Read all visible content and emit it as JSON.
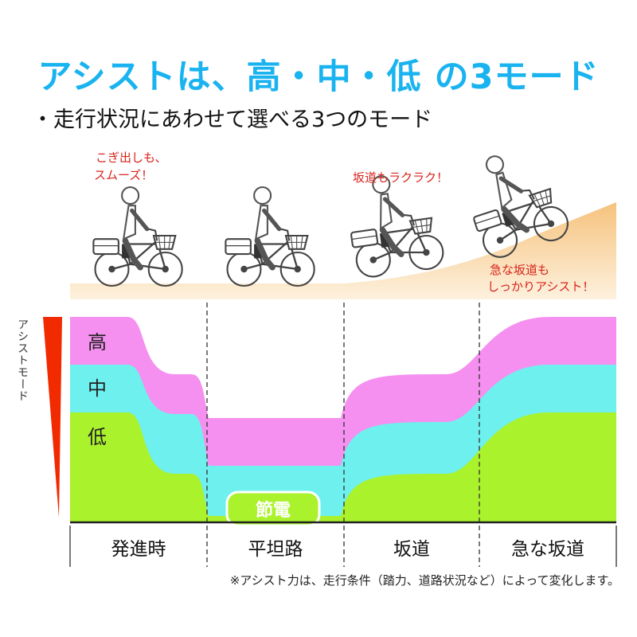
{
  "header": {
    "title": "アシストは、高・中・低 の3モード",
    "subtitle": "・走行状況にあわせて選べる3つのモード"
  },
  "callouts": {
    "start": [
      "こぎ出しも、",
      "スムーズ！"
    ],
    "slope": [
      "坂道もラクラク！"
    ],
    "steep": [
      "急な坂道も",
      "しっかりアシスト！"
    ]
  },
  "axis_label": "アシストモード",
  "modes": {
    "high": "高",
    "mid": "中",
    "low": "低",
    "eco": "節電"
  },
  "sections": [
    "発進時",
    "平坦路",
    "坂道",
    "急な坂道"
  ],
  "footnote": "※アシスト力は、走行条件（踏力、道路状況など）によって変化します。",
  "colors": {
    "title": "#19b3f0",
    "high": "#f590f0",
    "mid": "#6ef0ee",
    "low": "#aaf22c",
    "callout": "#d8241c",
    "road": "#f8cf92",
    "arrow": "#f22a00"
  },
  "icons": [
    "bicycle-rider-icon"
  ]
}
